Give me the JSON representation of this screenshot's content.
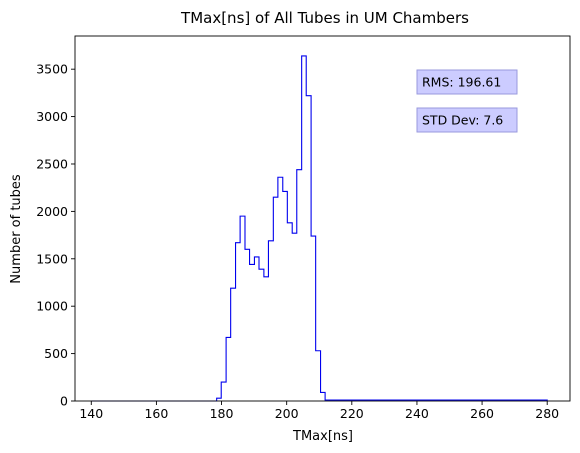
{
  "chart_data": {
    "type": "histogram",
    "title": "TMax[ns] of All Tubes in UM Chambers",
    "xlabel": "TMax[ns]",
    "ylabel": "Number of tubes",
    "xlim": [
      135,
      287
    ],
    "ylim": [
      0,
      3850
    ],
    "xticks": [
      140,
      160,
      180,
      200,
      220,
      240,
      260,
      280
    ],
    "yticks": [
      0,
      500,
      1000,
      1500,
      2000,
      2500,
      3000,
      3500
    ],
    "grid": false,
    "line_color": "#0000ee",
    "bin_edges": [
      140,
      178.5,
      179.9,
      181.4,
      182.8,
      184.3,
      185.7,
      187.2,
      188.6,
      190.1,
      191.5,
      193.0,
      194.4,
      195.9,
      197.3,
      198.8,
      200.2,
      201.7,
      203.1,
      204.6,
      206.0,
      207.5,
      208.9,
      210.4,
      211.8,
      280
    ],
    "counts": [
      0,
      30,
      200,
      670,
      1190,
      1670,
      1950,
      1600,
      1440,
      1520,
      1390,
      1310,
      1690,
      2150,
      2360,
      2210,
      1880,
      1770,
      2440,
      3640,
      3220,
      1740,
      530,
      90,
      10
    ],
    "annotations": [
      {
        "text": "RMS: 196.61",
        "position": "upper-right"
      },
      {
        "text": "STD Dev: 7.6",
        "position": "upper-right"
      }
    ],
    "annotation_face": "#ccccff",
    "annotation_edge": "#9999dd"
  }
}
